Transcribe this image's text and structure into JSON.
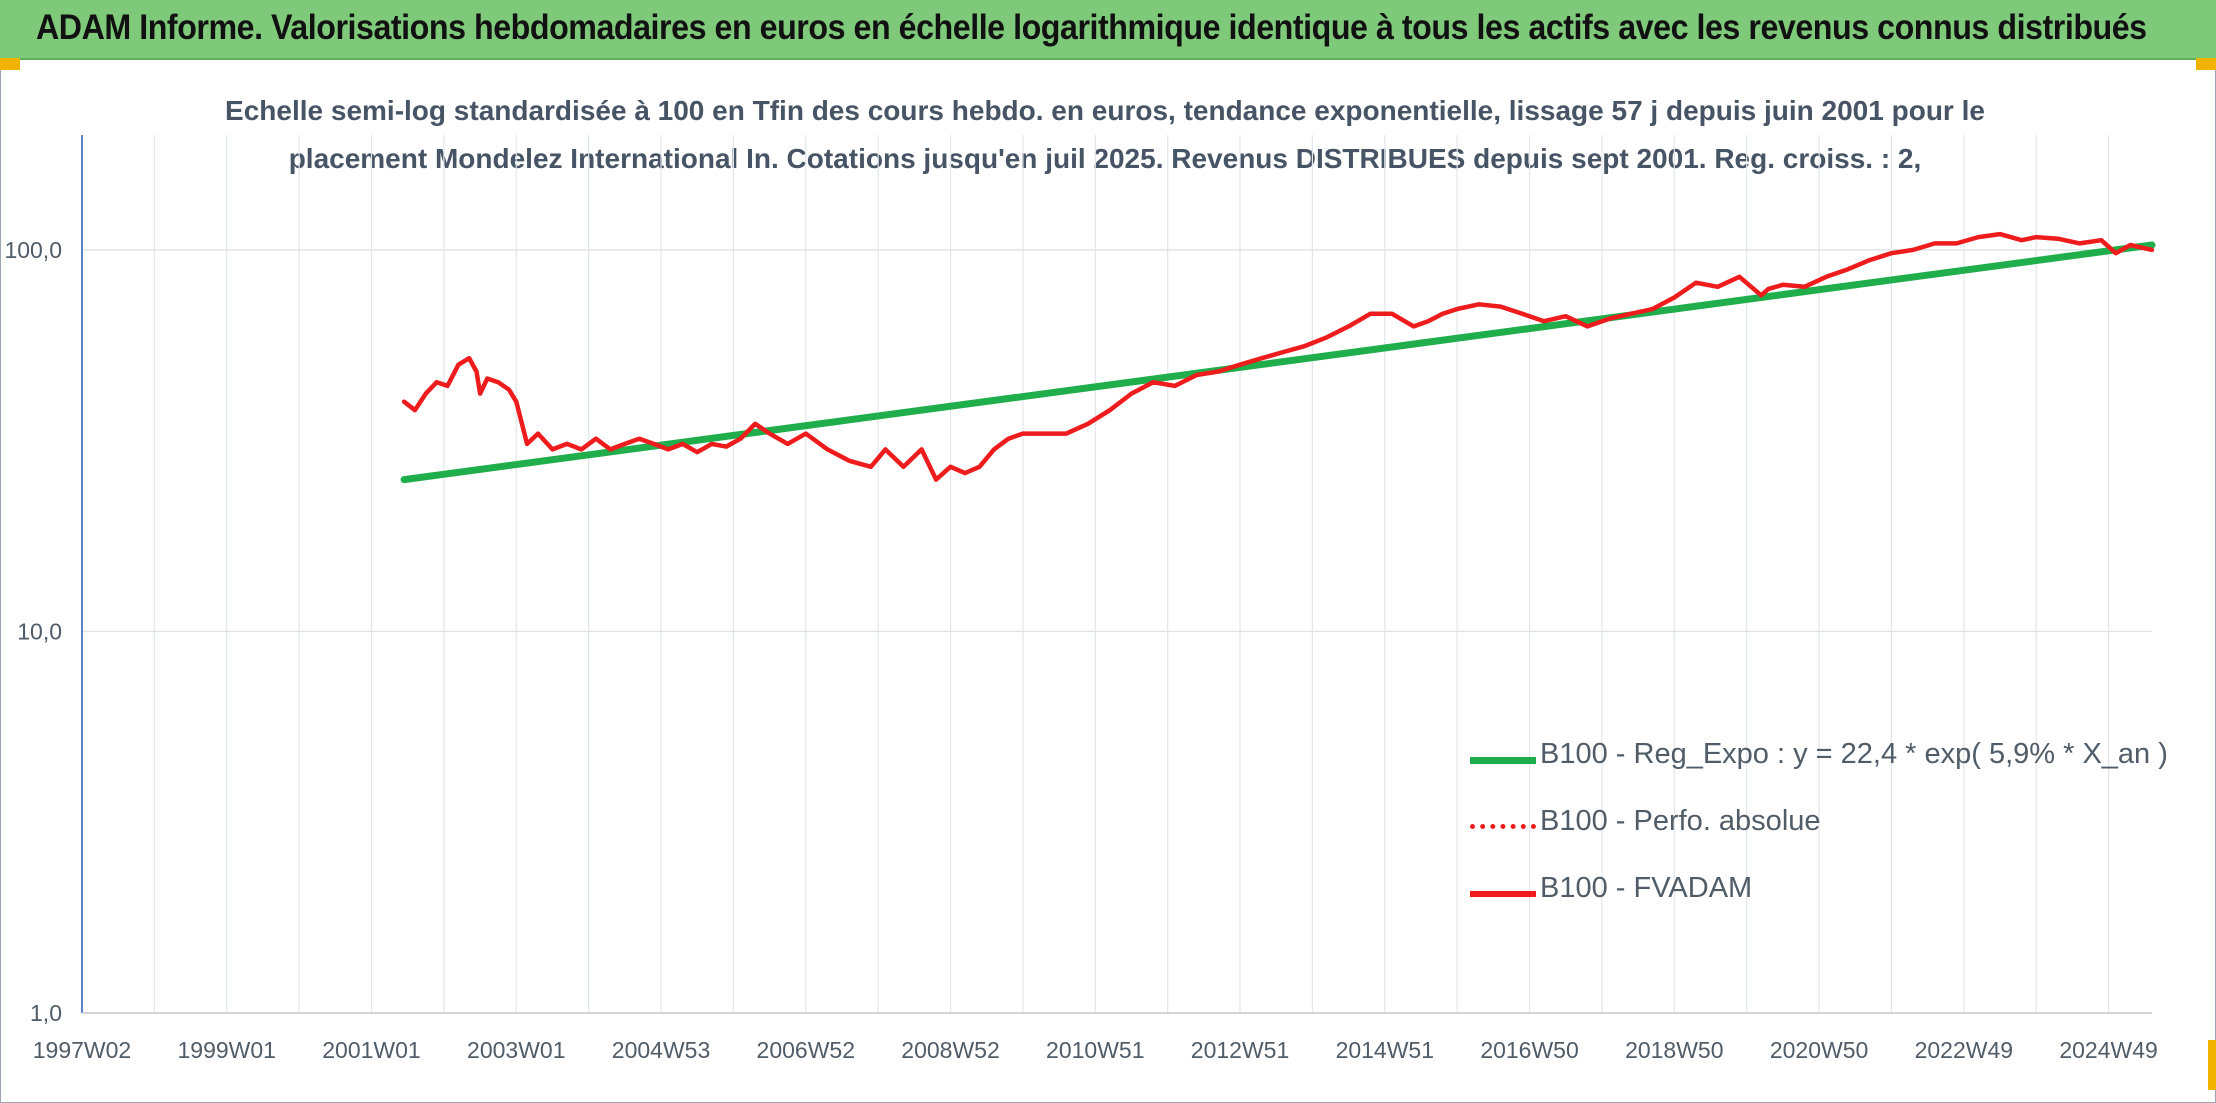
{
  "header": {
    "title": "ADAM Informe. Valorisations hebdomadaires en euros en échelle logarithmique identique à tous les actifs avec les revenus connus distribués"
  },
  "colors": {
    "header_bg": "#7fc97a",
    "accent_corner": "#f0b400",
    "trend_line": "#1fae4b",
    "fvadam_line": "#ee1c1c",
    "perf_line": "#ee1c1c"
  },
  "chart_data": {
    "type": "line",
    "title_lines": [
      "Echelle semi-log standardisée à 100 en Tfin des cours hebdo. en euros, tendance exponentielle, lissage 57 j depuis juin 2001 pour le",
      "placement Mondelez International In. Cotations jusqu'en juil 2025. Revenus DISTRIBUES depuis sept 2001. Reg. croiss. : 2,"
    ],
    "y_scale": "log",
    "ylim": [
      1,
      200
    ],
    "y_ticks": [
      1,
      10,
      100
    ],
    "y_tick_labels": [
      "1,0",
      "10,0",
      "100,0"
    ],
    "xlim": [
      1997.0,
      2025.6
    ],
    "x_ticks": [
      1997.0,
      1999.0,
      2001.0,
      2003.0,
      2005.0,
      2007.0,
      2009.0,
      2011.0,
      2013.0,
      2015.0,
      2017.0,
      2019.0,
      2021.0,
      2023.0,
      2025.0
    ],
    "x_tick_labels": [
      "1997W02",
      "1999W01",
      "2001W01",
      "2003W01",
      "2004W53",
      "2006W52",
      "2008W52",
      "2010W51",
      "2012W51",
      "2014W51",
      "2016W50",
      "2018W50",
      "2020W50",
      "2022W49",
      "2024W49"
    ],
    "grid": true,
    "legend_position": "bottom-right",
    "series": [
      {
        "name": "B100 - Reg_Expo : y = 22,4 * exp( 5,9% *  X_an )",
        "style": "solid",
        "color": "#1fae4b",
        "x": [
          2001.45,
          2025.6
        ],
        "y": [
          25,
          103
        ]
      },
      {
        "name": "B100 - Perfo. absolue",
        "style": "dotted",
        "color": "#ee1c1c",
        "x": [],
        "y": []
      },
      {
        "name": "B100 - FVADAM",
        "style": "solid",
        "color": "#ee1c1c",
        "x": [
          2001.45,
          2001.6,
          2001.75,
          2001.9,
          2002.05,
          2002.2,
          2002.35,
          2002.45,
          2002.5,
          2002.6,
          2002.75,
          2002.9,
          2003.0,
          2003.15,
          2003.3,
          2003.5,
          2003.7,
          2003.9,
          2004.1,
          2004.3,
          2004.5,
          2004.7,
          2004.9,
          2005.1,
          2005.3,
          2005.5,
          2005.7,
          2005.9,
          2006.1,
          2006.3,
          2006.5,
          2006.75,
          2007.0,
          2007.3,
          2007.6,
          2007.9,
          2008.1,
          2008.35,
          2008.6,
          2008.8,
          2009.0,
          2009.2,
          2009.4,
          2009.6,
          2009.8,
          2010.0,
          2010.3,
          2010.6,
          2010.9,
          2011.2,
          2011.5,
          2011.8,
          2012.1,
          2012.4,
          2012.7,
          2013.0,
          2013.3,
          2013.6,
          2013.9,
          2014.2,
          2014.5,
          2014.8,
          2015.1,
          2015.4,
          2015.6,
          2015.8,
          2016.0,
          2016.3,
          2016.6,
          2016.9,
          2017.2,
          2017.5,
          2017.8,
          2018.1,
          2018.4,
          2018.7,
          2019.0,
          2019.3,
          2019.6,
          2019.9,
          2020.2,
          2020.3,
          2020.5,
          2020.8,
          2021.1,
          2021.4,
          2021.7,
          2022.0,
          2022.3,
          2022.6,
          2022.9,
          2023.2,
          2023.5,
          2023.8,
          2024.0,
          2024.3,
          2024.6,
          2024.9,
          2025.1,
          2025.3,
          2025.6
        ],
        "y": [
          40,
          38,
          42,
          45,
          44,
          50,
          52,
          48,
          42,
          46,
          45,
          43,
          40,
          31,
          33,
          30,
          31,
          30,
          32,
          30,
          31,
          32,
          31,
          30,
          31,
          29.5,
          31,
          30.5,
          32,
          35,
          33,
          31,
          33,
          30,
          28,
          27,
          30,
          27,
          30,
          25,
          27,
          26,
          27,
          30,
          32,
          33,
          33,
          33,
          35,
          38,
          42,
          45,
          44,
          47,
          48,
          50,
          52,
          54,
          56,
          59,
          63,
          68,
          68,
          63,
          65,
          68,
          70,
          72,
          71,
          68,
          65,
          67,
          63,
          66,
          68,
          70,
          75,
          82,
          80,
          85,
          76,
          79,
          81,
          80,
          85,
          89,
          94,
          98,
          100,
          104,
          104,
          108,
          110,
          106,
          108,
          107,
          104,
          106,
          98,
          103,
          100
        ]
      }
    ]
  }
}
